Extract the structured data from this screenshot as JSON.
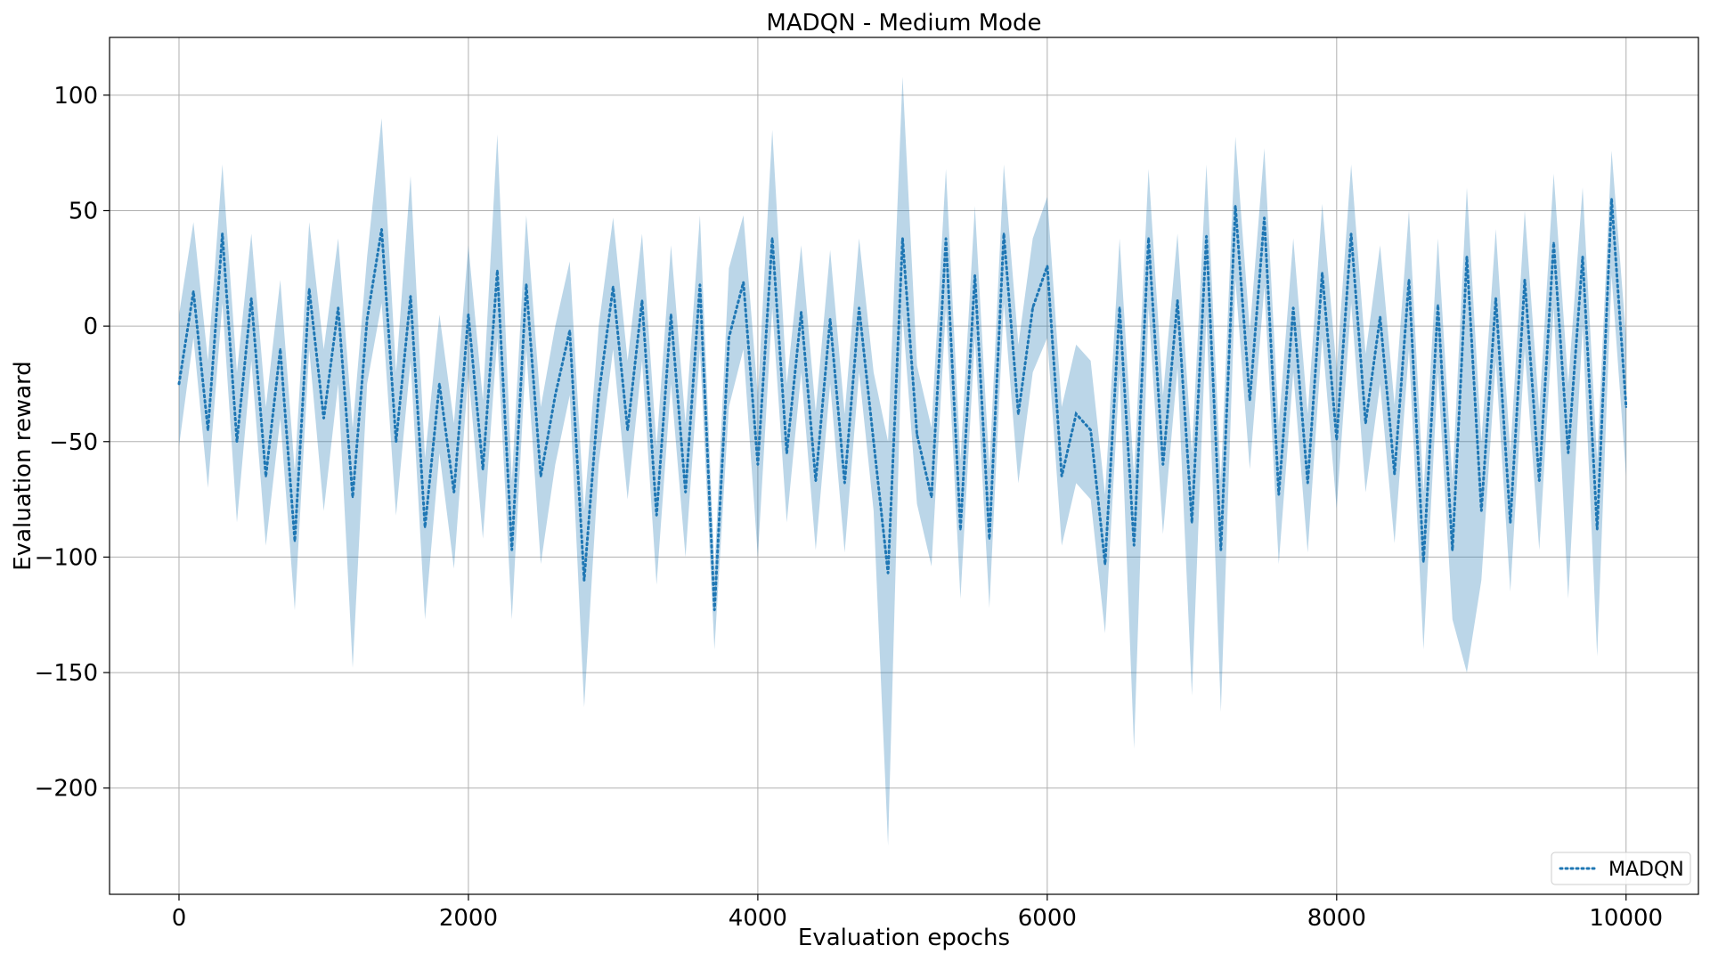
{
  "chart_data": {
    "type": "line",
    "title": "MADQN - Medium Mode",
    "xlabel": "Evaluation epochs",
    "ylabel": "Evaluation reward",
    "xlim": [
      -480,
      10500
    ],
    "ylim": [
      -246,
      125
    ],
    "xticks": [
      0,
      2000,
      4000,
      6000,
      8000,
      10000
    ],
    "xtick_labels": [
      "0",
      "2000",
      "4000",
      "6000",
      "8000",
      "10000"
    ],
    "yticks": [
      100,
      50,
      0,
      -50,
      -100,
      -150,
      -200
    ],
    "ytick_labels": [
      "100",
      "50",
      "0",
      "−50",
      "−100",
      "−150",
      "−200"
    ],
    "grid": true,
    "legend_position": "lower-right",
    "series": [
      {
        "name": "MADQN",
        "style": "dotted",
        "color": "#1f77b4",
        "band_color": "#1f77b4",
        "band_opacity": 0.3,
        "x": [
          0,
          100,
          200,
          300,
          400,
          500,
          600,
          700,
          800,
          900,
          1000,
          1100,
          1200,
          1300,
          1400,
          1500,
          1600,
          1700,
          1800,
          1900,
          2000,
          2100,
          2200,
          2300,
          2400,
          2500,
          2600,
          2700,
          2800,
          2900,
          3000,
          3100,
          3200,
          3300,
          3400,
          3500,
          3600,
          3700,
          3800,
          3900,
          4000,
          4100,
          4200,
          4300,
          4400,
          4500,
          4600,
          4700,
          4800,
          4900,
          5000,
          5100,
          5200,
          5300,
          5400,
          5500,
          5600,
          5700,
          5800,
          5900,
          6000,
          6100,
          6200,
          6300,
          6400,
          6500,
          6600,
          6700,
          6800,
          6900,
          7000,
          7100,
          7200,
          7300,
          7400,
          7500,
          7600,
          7700,
          7800,
          7900,
          8000,
          8100,
          8200,
          8300,
          8400,
          8500,
          8600,
          8700,
          8800,
          8900,
          9000,
          9100,
          9200,
          9300,
          9400,
          9500,
          9600,
          9700,
          9800,
          9900,
          10000
        ],
        "values": [
          -25,
          15,
          -45,
          40,
          -50,
          12,
          -65,
          -10,
          -93,
          16,
          -40,
          8,
          -74,
          3,
          42,
          -50,
          13,
          -87,
          -25,
          -72,
          5,
          -62,
          24,
          -97,
          18,
          -65,
          -30,
          -2,
          -110,
          -30,
          17,
          -45,
          11,
          -82,
          5,
          -72,
          18,
          -123,
          -5,
          19,
          -60,
          38,
          -55,
          6,
          -67,
          3,
          -68,
          8,
          -50,
          -107,
          38,
          -47,
          -74,
          38,
          -88,
          22,
          -92,
          40,
          -38,
          8,
          26,
          -65,
          -38,
          -45,
          -103,
          8,
          -95,
          38,
          -60,
          11,
          -85,
          39,
          -97,
          52,
          -32,
          47,
          -73,
          8,
          -68,
          23,
          -49,
          40,
          -42,
          4,
          -64,
          20,
          -102,
          9,
          -97,
          30,
          -80,
          12,
          -85,
          20,
          -67,
          36,
          -55,
          30,
          -88,
          55,
          -35
        ],
        "lower": [
          -52,
          -5,
          -70,
          10,
          -85,
          -15,
          -95,
          -40,
          -123,
          -10,
          -80,
          -25,
          -148,
          -25,
          10,
          -82,
          -15,
          -127,
          -55,
          -105,
          -20,
          -92,
          -5,
          -127,
          -10,
          -103,
          -60,
          -30,
          -165,
          -60,
          -10,
          -75,
          -15,
          -112,
          -25,
          -100,
          -10,
          -140,
          -35,
          -10,
          -100,
          8,
          -85,
          -20,
          -97,
          -25,
          -98,
          -20,
          -80,
          -225,
          5,
          -77,
          -104,
          8,
          -118,
          -5,
          -122,
          10,
          -68,
          -20,
          -5,
          -95,
          -68,
          -75,
          -133,
          -20,
          -183,
          8,
          -90,
          -18,
          -160,
          5,
          -167,
          20,
          -62,
          17,
          -103,
          -20,
          -98,
          -5,
          -79,
          10,
          -72,
          -25,
          -94,
          -10,
          -140,
          -20,
          -127,
          -150,
          -110,
          -15,
          -115,
          -10,
          -97,
          8,
          -118,
          0,
          -143,
          22,
          -65
        ],
        "upper": [
          5,
          45,
          -15,
          70,
          -20,
          40,
          -35,
          20,
          -63,
          45,
          -10,
          38,
          -44,
          30,
          90,
          -20,
          65,
          -57,
          5,
          -42,
          35,
          -32,
          83,
          -67,
          48,
          -35,
          0,
          28,
          -80,
          0,
          47,
          -15,
          40,
          -52,
          35,
          -42,
          48,
          -106,
          25,
          48,
          -30,
          85,
          -25,
          35,
          -37,
          33,
          -38,
          38,
          -20,
          -50,
          108,
          -17,
          -44,
          68,
          -58,
          52,
          -62,
          70,
          -8,
          38,
          56,
          -35,
          -8,
          -15,
          -73,
          38,
          -65,
          68,
          -30,
          40,
          -55,
          70,
          -67,
          82,
          -2,
          77,
          -43,
          38,
          -38,
          53,
          -19,
          70,
          -12,
          35,
          -34,
          50,
          -72,
          38,
          -67,
          60,
          -50,
          42,
          -55,
          50,
          -37,
          66,
          -25,
          60,
          -58,
          76,
          -5
        ]
      }
    ]
  }
}
